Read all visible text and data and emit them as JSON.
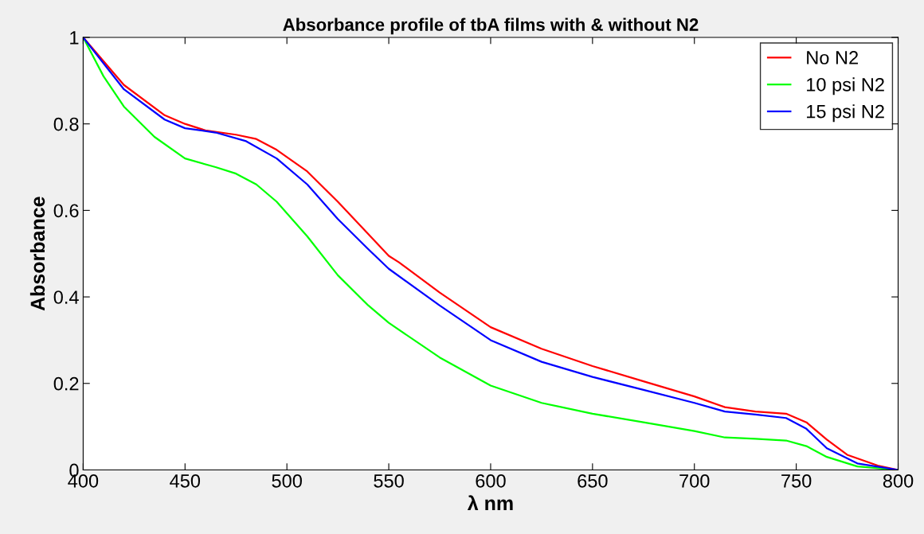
{
  "chart_data": {
    "type": "line",
    "title": "Absorbance profile of tbA films with & without N2",
    "xlabel": "λ nm",
    "ylabel": "Absorbance",
    "xlim": [
      400,
      800
    ],
    "xticks": [
      400,
      450,
      500,
      550,
      600,
      650,
      700,
      750,
      800
    ],
    "ylim": [
      0,
      1
    ],
    "yticks": [
      0,
      0.2,
      0.4,
      0.6,
      0.8,
      1
    ],
    "grid": false,
    "legend": "top right",
    "marker": "none",
    "line_style": "solid",
    "series": [
      {
        "name": "No N2",
        "color": "#ff0000",
        "x": [
          400,
          420,
          440,
          450,
          460,
          475,
          485,
          495,
          510,
          525,
          540,
          550,
          555,
          575,
          600,
          625,
          650,
          675,
          700,
          715,
          730,
          745,
          755,
          765,
          775,
          790,
          800
        ],
        "values": [
          1.0,
          0.89,
          0.82,
          0.8,
          0.785,
          0.775,
          0.765,
          0.74,
          0.69,
          0.62,
          0.545,
          0.495,
          0.48,
          0.41,
          0.33,
          0.28,
          0.24,
          0.205,
          0.17,
          0.145,
          0.135,
          0.13,
          0.11,
          0.07,
          0.035,
          0.01,
          0.0
        ]
      },
      {
        "name": "10 psi N2",
        "color": "#00ff00",
        "x": [
          400,
          410,
          420,
          435,
          450,
          465,
          475,
          485,
          495,
          510,
          525,
          540,
          550,
          575,
          600,
          625,
          650,
          675,
          700,
          715,
          730,
          745,
          755,
          765,
          780,
          800
        ],
        "values": [
          1.0,
          0.91,
          0.84,
          0.77,
          0.72,
          0.7,
          0.685,
          0.66,
          0.62,
          0.54,
          0.45,
          0.38,
          0.34,
          0.26,
          0.195,
          0.155,
          0.13,
          0.11,
          0.09,
          0.075,
          0.072,
          0.068,
          0.055,
          0.03,
          0.008,
          0.0
        ]
      },
      {
        "name": "15 psi N2",
        "color": "#0000ff",
        "x": [
          400,
          420,
          440,
          450,
          465,
          480,
          495,
          510,
          525,
          540,
          550,
          575,
          600,
          625,
          650,
          675,
          700,
          715,
          730,
          745,
          755,
          765,
          780,
          800
        ],
        "values": [
          1.0,
          0.88,
          0.81,
          0.79,
          0.78,
          0.76,
          0.72,
          0.66,
          0.58,
          0.51,
          0.465,
          0.38,
          0.3,
          0.25,
          0.215,
          0.185,
          0.155,
          0.135,
          0.128,
          0.12,
          0.095,
          0.05,
          0.015,
          0.0
        ]
      }
    ]
  }
}
